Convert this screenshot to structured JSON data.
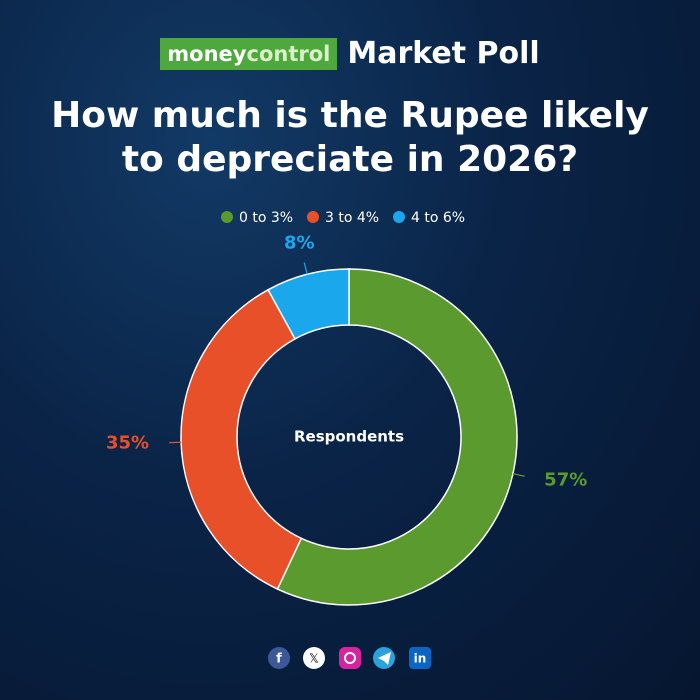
{
  "header": {
    "brand_prefix": "money",
    "brand_suffix": "control",
    "label": "Market Poll"
  },
  "chart_data": {
    "type": "donut",
    "title": "How much is the Rupee likely to depreciate in 2026?",
    "center_label": "Respondents",
    "categories": [
      "0 to 3%",
      "3 to 4%",
      "4 to 6%"
    ],
    "values": [
      57,
      35,
      8
    ],
    "value_labels": [
      "57%",
      "35%",
      "8%"
    ],
    "colors": [
      "#5a9a2e",
      "#e8502a",
      "#1aa7ec"
    ],
    "legend": "top"
  }
}
